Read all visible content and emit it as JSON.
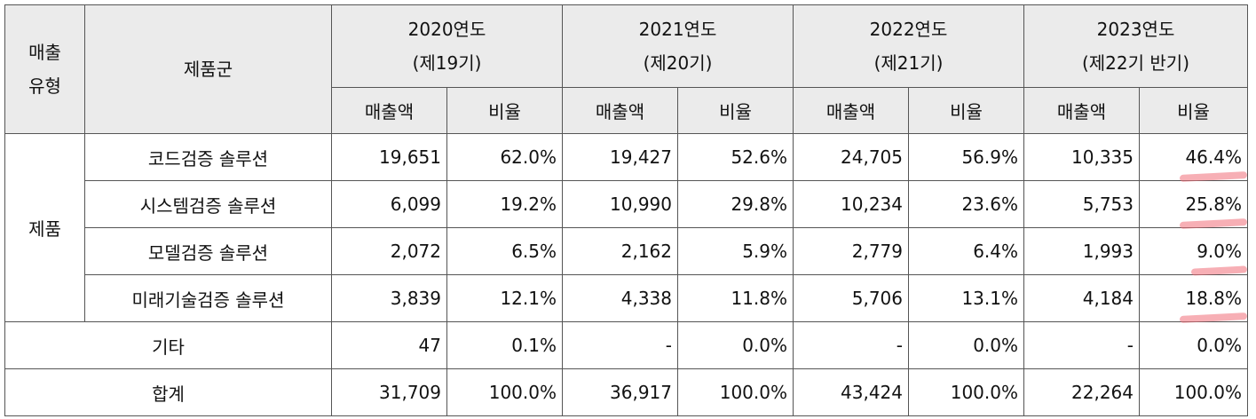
{
  "header": {
    "type_col": [
      "매출",
      "유형"
    ],
    "product_col": "제품군",
    "years": [
      {
        "year": "2020연도",
        "period": "(제19기)"
      },
      {
        "year": "2021연도",
        "period": "(제20기)"
      },
      {
        "year": "2022연도",
        "period": "(제21기)"
      },
      {
        "year": "2023연도",
        "period": "(제22기 반기)"
      }
    ],
    "sales_label": "매출액",
    "ratio_label": "비율"
  },
  "group_label": "제품",
  "rows": [
    {
      "name": "코드검증 솔루션",
      "values": [
        "19,651",
        "62.0%",
        "19,427",
        "52.6%",
        "24,705",
        "56.9%",
        "10,335",
        "46.4%"
      ]
    },
    {
      "name": "시스템검증 솔루션",
      "values": [
        "6,099",
        "19.2%",
        "10,990",
        "29.8%",
        "10,234",
        "23.6%",
        "5,753",
        "25.8%"
      ]
    },
    {
      "name": "모델검증 솔루션",
      "values": [
        "2,072",
        "6.5%",
        "2,162",
        "5.9%",
        "2,779",
        "6.4%",
        "1,993",
        "9.0%"
      ]
    },
    {
      "name": "미래기술검증 솔루션",
      "values": [
        "3,839",
        "12.1%",
        "4,338",
        "11.8%",
        "5,706",
        "13.1%",
        "4,184",
        "18.8%"
      ]
    }
  ],
  "other": {
    "name": "기타",
    "values": [
      "47",
      "0.1%",
      "-",
      "0.0%",
      "-",
      "0.0%",
      "-",
      "0.0%"
    ]
  },
  "total": {
    "name": "합계",
    "values": [
      "31,709",
      "100.0%",
      "36,917",
      "100.0%",
      "43,424",
      "100.0%",
      "22,264",
      "100.0%"
    ]
  }
}
